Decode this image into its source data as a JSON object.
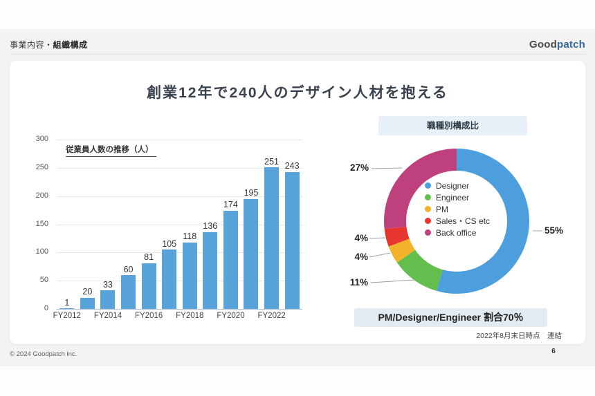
{
  "header": {
    "section_regular": "事業内容・",
    "section_bold": "組織構成",
    "logo_good": "Good",
    "logo_patch": "patch"
  },
  "slide": {
    "title": "創業12年で240人のデザイン人材を抱える",
    "callout": "PM/Designer/Engineer 割合70％",
    "date_note": "2022年8月末日時点　連結",
    "page_number": "6"
  },
  "footer": {
    "copyright": "© 2024 Goodpatch inc."
  },
  "chart_data": [
    {
      "type": "bar",
      "title": "従業員人数の推移（人）",
      "categories": [
        "FY2012",
        "FY2013",
        "FY2014",
        "FY2015",
        "FY2016",
        "FY2017",
        "FY2018",
        "FY2019",
        "FY2020",
        "FY2021",
        "FY2022",
        "FY2023"
      ],
      "values": [
        1,
        20,
        33,
        60,
        81,
        105,
        118,
        136,
        174,
        195,
        251,
        243
      ],
      "x_tick_labels": [
        "FY2012",
        "FY2014",
        "FY2016",
        "FY2018",
        "FY2020",
        "FY2022"
      ],
      "y_ticks": [
        0,
        50,
        100,
        150,
        200,
        250,
        300
      ],
      "ylim": [
        0,
        300
      ],
      "bar_color": "#57a3da",
      "grid": "horizontal"
    },
    {
      "type": "pie",
      "subtype": "donut",
      "title": "職種別構成比",
      "legend_position": "center",
      "segments": [
        {
          "label": "Designer",
          "value": 55,
          "pct_label": "55%",
          "color": "#4c9fdc"
        },
        {
          "label": "Engineer",
          "value": 11,
          "pct_label": "11%",
          "color": "#63be4e"
        },
        {
          "label": "PM",
          "value": 4,
          "pct_label": "4%",
          "color": "#f2b32a"
        },
        {
          "label": "Sales・CS etc",
          "value": 4,
          "pct_label": "4%",
          "color": "#e6362f"
        },
        {
          "label": "Back office",
          "value": 27,
          "pct_label": "27%",
          "color": "#be417e"
        }
      ]
    }
  ]
}
